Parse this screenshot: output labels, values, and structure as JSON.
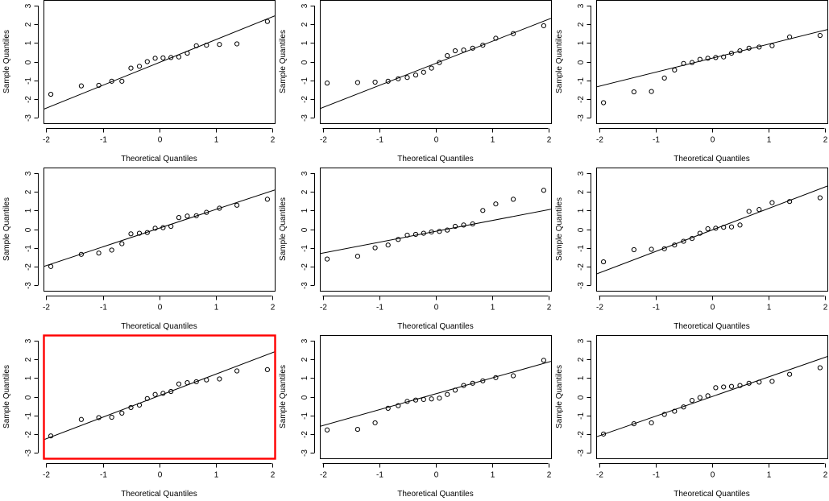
{
  "figure": {
    "title": "",
    "highlight_color": "#ff0000",
    "highlighted_panel_index": 6
  },
  "chart_data": [
    {
      "type": "scatter",
      "title": "",
      "xlabel": "Theoretical Quantiles",
      "ylabel": "Sample Quantiles",
      "xlim": [
        -2.05,
        2.05
      ],
      "ylim": [
        -3.3,
        3.3
      ],
      "xticks": [
        -2,
        -1,
        0,
        1,
        2
      ],
      "yticks": [
        -3,
        -2,
        -1,
        0,
        1,
        2,
        3
      ],
      "x": [
        -1.92,
        -1.38,
        -1.07,
        -0.84,
        -0.66,
        -0.5,
        -0.35,
        -0.21,
        -0.07,
        0.07,
        0.21,
        0.35,
        0.5,
        0.66,
        0.84,
        1.07,
        1.38,
        1.92
      ],
      "y": [
        -1.75,
        -1.3,
        -1.27,
        -1.05,
        -1.05,
        -0.35,
        -0.25,
        0.0,
        0.18,
        0.2,
        0.22,
        0.25,
        0.45,
        0.85,
        0.88,
        0.92,
        0.95,
        2.15
      ],
      "ref_line": {
        "intercept": -0.05,
        "slope": 1.22
      },
      "highlighted": false
    },
    {
      "type": "scatter",
      "title": "",
      "xlabel": "Theoretical Quantiles",
      "ylabel": "Sample Quantiles",
      "xlim": [
        -2.05,
        2.05
      ],
      "ylim": [
        -3.3,
        3.3
      ],
      "xticks": [
        -2,
        -1,
        0,
        1,
        2
      ],
      "yticks": [
        -3,
        -2,
        -1,
        0,
        1,
        2,
        3
      ],
      "x": [
        -1.92,
        -1.38,
        -1.07,
        -0.84,
        -0.66,
        -0.5,
        -0.35,
        -0.21,
        -0.07,
        0.07,
        0.21,
        0.35,
        0.5,
        0.66,
        0.84,
        1.07,
        1.38,
        1.92
      ],
      "y": [
        -1.15,
        -1.12,
        -1.1,
        -1.05,
        -0.92,
        -0.85,
        -0.72,
        -0.57,
        -0.35,
        -0.05,
        0.32,
        0.58,
        0.62,
        0.72,
        0.88,
        1.25,
        1.5,
        1.92
      ],
      "ref_line": {
        "intercept": -0.1,
        "slope": 1.18
      },
      "highlighted": false
    },
    {
      "type": "scatter",
      "title": "",
      "xlabel": "Theoretical Quantiles",
      "ylabel": "Sample Quantiles",
      "xlim": [
        -2.05,
        2.05
      ],
      "ylim": [
        -3.3,
        3.3
      ],
      "xticks": [
        -2,
        -1,
        0,
        1,
        2
      ],
      "yticks": [
        -3,
        -2,
        -1,
        0,
        1,
        2,
        3
      ],
      "x": [
        -1.92,
        -1.38,
        -1.07,
        -0.84,
        -0.66,
        -0.5,
        -0.35,
        -0.21,
        -0.07,
        0.07,
        0.21,
        0.35,
        0.5,
        0.66,
        0.84,
        1.07,
        1.38,
        1.92
      ],
      "y": [
        -2.2,
        -1.62,
        -1.6,
        -0.88,
        -0.45,
        -0.1,
        -0.05,
        0.12,
        0.18,
        0.22,
        0.25,
        0.45,
        0.58,
        0.72,
        0.78,
        0.85,
        1.32,
        1.4
      ],
      "ref_line": {
        "intercept": 0.18,
        "slope": 0.75
      },
      "highlighted": false
    },
    {
      "type": "scatter",
      "title": "",
      "xlabel": "Theoretical Quantiles",
      "ylabel": "Sample Quantiles",
      "xlim": [
        -2.05,
        2.05
      ],
      "ylim": [
        -3.3,
        3.3
      ],
      "xticks": [
        -2,
        -1,
        0,
        1,
        2
      ],
      "yticks": [
        -3,
        -2,
        -1,
        0,
        1,
        2,
        3
      ],
      "x": [
        -1.92,
        -1.38,
        -1.07,
        -0.84,
        -0.66,
        -0.5,
        -0.35,
        -0.21,
        -0.07,
        0.07,
        0.21,
        0.35,
        0.5,
        0.66,
        0.84,
        1.07,
        1.38,
        1.92
      ],
      "y": [
        -2.0,
        -1.35,
        -1.28,
        -1.12,
        -0.78,
        -0.25,
        -0.22,
        -0.18,
        0.05,
        0.08,
        0.15,
        0.62,
        0.7,
        0.72,
        0.9,
        1.12,
        1.28,
        1.6
      ],
      "ref_line": {
        "intercept": 0.05,
        "slope": 1.0
      },
      "highlighted": false
    },
    {
      "type": "scatter",
      "title": "",
      "xlabel": "Theoretical Quantiles",
      "ylabel": "Sample Quantiles",
      "xlim": [
        -2.05,
        2.05
      ],
      "ylim": [
        -3.3,
        3.3
      ],
      "xticks": [
        -2,
        -1,
        0,
        1,
        2
      ],
      "yticks": [
        -3,
        -2,
        -1,
        0,
        1,
        2,
        3
      ],
      "x": [
        -1.92,
        -1.38,
        -1.07,
        -0.84,
        -0.66,
        -0.5,
        -0.35,
        -0.21,
        -0.07,
        0.07,
        0.21,
        0.35,
        0.5,
        0.66,
        0.84,
        1.07,
        1.38,
        1.92
      ],
      "y": [
        -1.6,
        -1.45,
        -1.0,
        -0.85,
        -0.55,
        -0.32,
        -0.28,
        -0.22,
        -0.15,
        -0.12,
        -0.05,
        0.15,
        0.22,
        0.28,
        1.0,
        1.35,
        1.6,
        2.08
      ],
      "ref_line": {
        "intercept": -0.12,
        "slope": 0.58
      },
      "highlighted": false
    },
    {
      "type": "scatter",
      "title": "",
      "xlabel": "Theoretical Quantiles",
      "ylabel": "Sample Quantiles",
      "xlim": [
        -2.05,
        2.05
      ],
      "ylim": [
        -3.3,
        3.3
      ],
      "xticks": [
        -2,
        -1,
        0,
        1,
        2
      ],
      "yticks": [
        -3,
        -2,
        -1,
        0,
        1,
        2,
        3
      ],
      "x": [
        -1.92,
        -1.38,
        -1.07,
        -0.84,
        -0.66,
        -0.5,
        -0.35,
        -0.21,
        -0.07,
        0.07,
        0.21,
        0.35,
        0.5,
        0.66,
        0.84,
        1.07,
        1.38,
        1.92
      ],
      "y": [
        -1.75,
        -1.1,
        -1.08,
        -1.05,
        -0.85,
        -0.65,
        -0.5,
        -0.22,
        0.02,
        0.05,
        0.1,
        0.12,
        0.22,
        0.95,
        1.05,
        1.42,
        1.48,
        1.68
      ],
      "ref_line": {
        "intercept": -0.05,
        "slope": 1.15
      },
      "highlighted": false
    },
    {
      "type": "scatter",
      "title": "",
      "xlabel": "Theoretical Quantiles",
      "ylabel": "Sample Quantiles",
      "xlim": [
        -2.05,
        2.05
      ],
      "ylim": [
        -3.3,
        3.3
      ],
      "xticks": [
        -2,
        -1,
        0,
        1,
        2
      ],
      "yticks": [
        -3,
        -2,
        -1,
        0,
        1,
        2,
        3
      ],
      "x": [
        -1.92,
        -1.38,
        -1.07,
        -0.84,
        -0.66,
        -0.5,
        -0.35,
        -0.21,
        -0.07,
        0.07,
        0.21,
        0.35,
        0.5,
        0.66,
        0.84,
        1.07,
        1.38,
        1.92
      ],
      "y": [
        -2.1,
        -1.22,
        -1.12,
        -1.1,
        -0.88,
        -0.58,
        -0.45,
        -0.1,
        0.12,
        0.18,
        0.28,
        0.68,
        0.75,
        0.8,
        0.9,
        0.95,
        1.38,
        1.45
      ],
      "ref_line": {
        "intercept": 0.05,
        "slope": 1.15
      },
      "highlighted": true
    },
    {
      "type": "scatter",
      "title": "",
      "xlabel": "Theoretical Quantiles",
      "ylabel": "Sample Quantiles",
      "xlim": [
        -2.05,
        2.05
      ],
      "ylim": [
        -3.3,
        3.3
      ],
      "xticks": [
        -2,
        -1,
        0,
        1,
        2
      ],
      "yticks": [
        -3,
        -2,
        -1,
        0,
        1,
        2,
        3
      ],
      "x": [
        -1.92,
        -1.38,
        -1.07,
        -0.84,
        -0.66,
        -0.5,
        -0.35,
        -0.21,
        -0.07,
        0.07,
        0.21,
        0.35,
        0.5,
        0.66,
        0.84,
        1.07,
        1.38,
        1.92
      ],
      "y": [
        -1.78,
        -1.75,
        -1.4,
        -0.62,
        -0.48,
        -0.25,
        -0.18,
        -0.15,
        -0.12,
        -0.08,
        0.12,
        0.35,
        0.6,
        0.72,
        0.85,
        1.02,
        1.12,
        1.95
      ],
      "ref_line": {
        "intercept": 0.15,
        "slope": 0.85
      },
      "highlighted": false
    },
    {
      "type": "scatter",
      "title": "",
      "xlabel": "Theoretical Quantiles",
      "ylabel": "Sample Quantiles",
      "xlim": [
        -2.05,
        2.05
      ],
      "ylim": [
        -3.3,
        3.3
      ],
      "xticks": [
        -2,
        -1,
        0,
        1,
        2
      ],
      "yticks": [
        -3,
        -2,
        -1,
        0,
        1,
        2,
        3
      ],
      "x": [
        -1.92,
        -1.38,
        -1.07,
        -0.84,
        -0.66,
        -0.5,
        -0.35,
        -0.21,
        -0.07,
        0.07,
        0.21,
        0.35,
        0.5,
        0.66,
        0.84,
        1.07,
        1.38,
        1.92
      ],
      "y": [
        -2.0,
        -1.45,
        -1.4,
        -0.95,
        -0.78,
        -0.55,
        -0.2,
        -0.05,
        0.05,
        0.48,
        0.52,
        0.55,
        0.6,
        0.72,
        0.78,
        0.82,
        1.2,
        1.55
      ],
      "ref_line": {
        "intercept": 0.0,
        "slope": 1.05
      },
      "highlighted": false
    }
  ]
}
